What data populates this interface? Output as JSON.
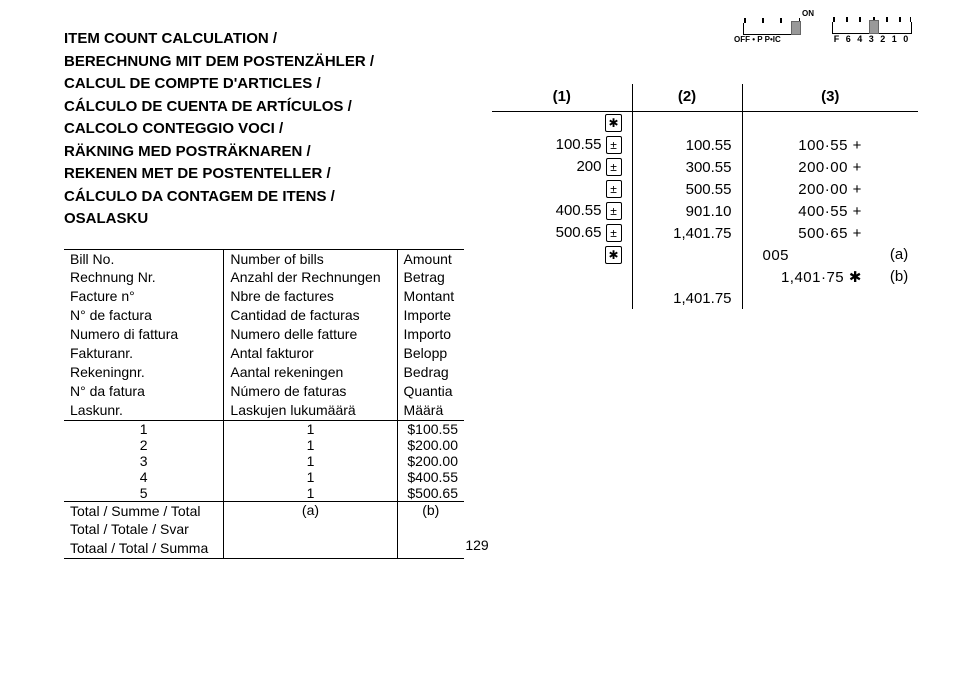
{
  "titles": [
    "ITEM COUNT CALCULATION /",
    "BERECHNUNG MIT DEM POSTENZÄHLER /",
    "CALCUL DE COMPTE D'ARTICLES /",
    "CÁLCULO DE CUENTA DE ARTÍCULOS /",
    "CALCOLO CONTEGGIO VOCI /",
    "RÄKNING MED POSTRÄKNAREN /",
    "REKENEN MET DE POSTENTELLER /",
    "CÁLCULO DA CONTAGEM DE ITENS /",
    "OSALASKU"
  ],
  "bill_table": {
    "headers": {
      "bill_no": [
        "Bill No.",
        "Rechnung Nr.",
        "Facture n°",
        "N° de factura",
        "Numero di fattura",
        "Fakturanr.",
        "Rekeningnr.",
        "N° da fatura",
        "Laskunr."
      ],
      "num_bills": [
        "Number of bills",
        "Anzahl der Rechnungen",
        "Nbre de factures",
        "Cantidad de facturas",
        "Numero delle fatture",
        "Antal fakturor",
        "Aantal rekeningen",
        "Número de faturas",
        "Laskujen lukumäärä"
      ],
      "amount": [
        "Amount",
        "Betrag",
        "Montant",
        "Importe",
        "Importo",
        "Belopp",
        "Bedrag",
        "Quantia",
        "Määrä"
      ]
    },
    "rows": [
      {
        "no": "1",
        "count": "1",
        "amount": "$100.55"
      },
      {
        "no": "2",
        "count": "1",
        "amount": "$200.00"
      },
      {
        "no": "3",
        "count": "1",
        "amount": "$200.00"
      },
      {
        "no": "4",
        "count": "1",
        "amount": "$400.55"
      },
      {
        "no": "5",
        "count": "1",
        "amount": "$500.65"
      }
    ],
    "total_labels": [
      "Total / Summe / Total",
      "Total / Totale / Svar",
      "Totaal / Total / Summa"
    ],
    "total_a": "(a)",
    "total_b": "(b)"
  },
  "switches": {
    "sw1": {
      "labels": "OFF • P P•IC",
      "on": "ON"
    },
    "sw2": {
      "labels": "F 6 4 3 2 1 0"
    }
  },
  "calc": {
    "headers": {
      "c1": "(1)",
      "c2": "(2)",
      "c3": "(3)"
    },
    "rows": [
      {
        "c1": "",
        "k": "✱",
        "c2": "",
        "c3": "",
        "suf": ""
      },
      {
        "c1": "100.55",
        "k": "±",
        "c2": "100.55",
        "c3": "100·55 +",
        "suf": ""
      },
      {
        "c1": "200",
        "k": "±",
        "c2": "300.55",
        "c3": "200·00 +",
        "suf": ""
      },
      {
        "c1": "",
        "k": "±",
        "c2": "500.55",
        "c3": "200·00 +",
        "suf": ""
      },
      {
        "c1": "400.55",
        "k": "±",
        "c2": "901.10",
        "c3": "400·55 +",
        "suf": ""
      },
      {
        "c1": "500.65",
        "k": "±",
        "c2": "1,401.75",
        "c3": "500·65 +",
        "suf": ""
      },
      {
        "c1": "",
        "k": "✱",
        "c2": "",
        "c3": "005",
        "suf": "(a)",
        "c3_align": "left"
      },
      {
        "c1": "",
        "k": "",
        "c2": "",
        "c3": "1,401·75 ✱",
        "suf": "(b)"
      },
      {
        "c1": "",
        "k": "",
        "c2": "1,401.75",
        "c3": "",
        "suf": ""
      }
    ]
  },
  "page_number": "129"
}
